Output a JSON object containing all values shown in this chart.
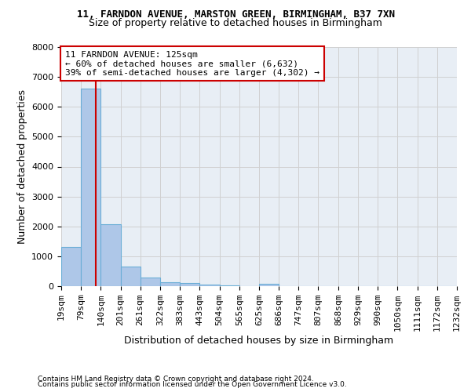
{
  "title1": "11, FARNDON AVENUE, MARSTON GREEN, BIRMINGHAM, B37 7XN",
  "title2": "Size of property relative to detached houses in Birmingham",
  "xlabel": "Distribution of detached houses by size in Birmingham",
  "ylabel": "Number of detached properties",
  "footnote1": "Contains HM Land Registry data © Crown copyright and database right 2024.",
  "footnote2": "Contains public sector information licensed under the Open Government Licence v3.0.",
  "bin_labels": [
    "19sqm",
    "79sqm",
    "140sqm",
    "201sqm",
    "261sqm",
    "322sqm",
    "383sqm",
    "443sqm",
    "504sqm",
    "565sqm",
    "625sqm",
    "686sqm",
    "747sqm",
    "807sqm",
    "868sqm",
    "929sqm",
    "990sqm",
    "1050sqm",
    "1111sqm",
    "1172sqm",
    "1232sqm"
  ],
  "bin_edges": [
    19,
    79,
    140,
    201,
    261,
    322,
    383,
    443,
    504,
    565,
    625,
    686,
    747,
    807,
    868,
    929,
    990,
    1050,
    1111,
    1172,
    1232
  ],
  "bar_heights": [
    1310,
    6620,
    2060,
    650,
    290,
    135,
    100,
    55,
    35,
    0,
    85,
    0,
    0,
    0,
    0,
    0,
    0,
    0,
    0,
    0
  ],
  "bar_color": "#aec7e8",
  "bar_edge_color": "#6baed6",
  "vline_x": 125,
  "vline_color": "#cc0000",
  "annotation_line1": "11 FARNDON AVENUE: 125sqm",
  "annotation_line2": "← 60% of detached houses are smaller (6,632)",
  "annotation_line3": "39% of semi-detached houses are larger (4,302) →",
  "annotation_box_color": "#cc0000",
  "ylim": [
    0,
    8000
  ],
  "yticks": [
    0,
    1000,
    2000,
    3000,
    4000,
    5000,
    6000,
    7000,
    8000
  ],
  "background_color": "#ffffff",
  "grid_color": "#d0d0d0",
  "title1_fontsize": 9,
  "title2_fontsize": 9,
  "ylabel_fontsize": 9,
  "xlabel_fontsize": 9,
  "tick_fontsize": 8,
  "annot_fontsize": 8
}
